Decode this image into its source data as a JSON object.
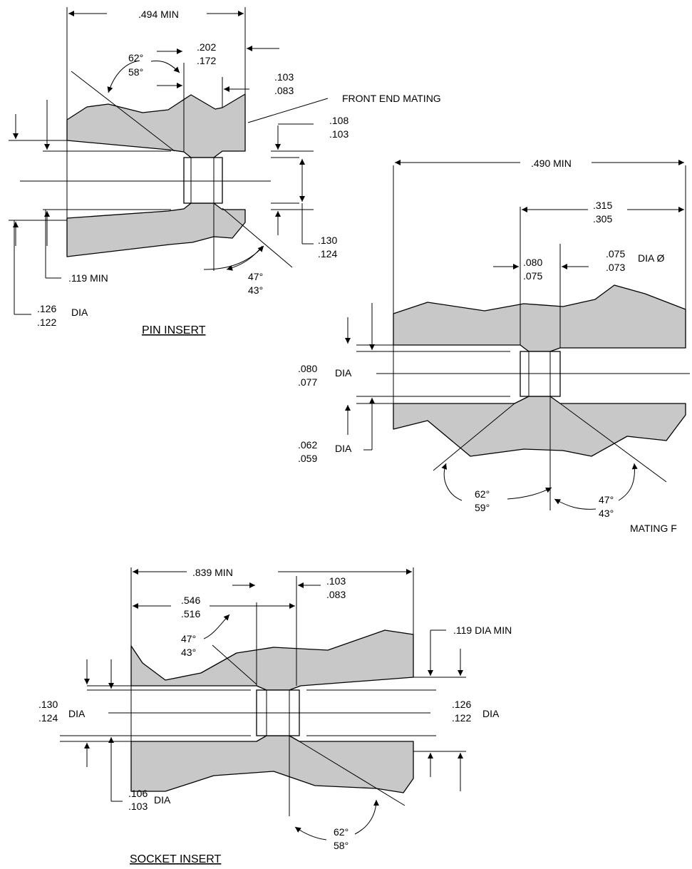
{
  "pin_insert": {
    "title": "PIN INSERT",
    "overall_length": ".494 MIN",
    "countersink_angle": {
      "max": "62°",
      "min": "58°"
    },
    "land_length": {
      "max": ".202",
      "min": ".172"
    },
    "counterbore_depth": {
      "max": ".103",
      "min": ".083"
    },
    "front_end_mating": "FRONT END MATING",
    "bore_small": {
      "max": ".108",
      "min": ".103"
    },
    "bore_large": {
      "max": ".130",
      "min": ".124"
    },
    "rear_angle": {
      "max": "47°",
      "min": "43°"
    },
    "rear_bore_min": ".119 MIN",
    "od": {
      "max": ".126",
      "min": ".122"
    },
    "od_suffix": "DIA"
  },
  "center_insert": {
    "overall_length": ".490 MIN",
    "land_position": {
      "max": ".315",
      "min": ".305"
    },
    "land_length": {
      "max": ".080",
      "min": ".075"
    },
    "land_dia": {
      "max": ".075",
      "min": ".073"
    },
    "land_dia_suffix": "DIA Ø",
    "bore_dia": {
      "max": ".080",
      "min": ".077"
    },
    "bore_dia_suffix": "DIA",
    "inner_dia": {
      "max": ".062",
      "min": ".059"
    },
    "inner_dia_suffix": "DIA",
    "left_angle": {
      "max": "62°",
      "min": "59°"
    },
    "right_angle": {
      "max": "47°",
      "min": "43°"
    },
    "mating_label": "MATING F"
  },
  "socket_insert": {
    "title": "SOCKET INSERT",
    "overall_length": ".839 MIN",
    "counterbore_depth": {
      "max": ".103",
      "min": ".083"
    },
    "land_position": {
      "max": ".546",
      "min": ".516"
    },
    "upper_angle": {
      "max": "47°",
      "min": "43°"
    },
    "rear_bore_min": ".119 DIA MIN",
    "left_bore": {
      "max": ".130",
      "min": ".124"
    },
    "left_bore_suffix": "DIA",
    "right_bore": {
      "max": ".126",
      "min": ".122"
    },
    "right_bore_suffix": "DIA",
    "inner_bore": {
      "max": ".106",
      "min": ".103"
    },
    "inner_bore_suffix": "DIA",
    "lower_angle": {
      "max": "62°",
      "min": "58°"
    }
  }
}
